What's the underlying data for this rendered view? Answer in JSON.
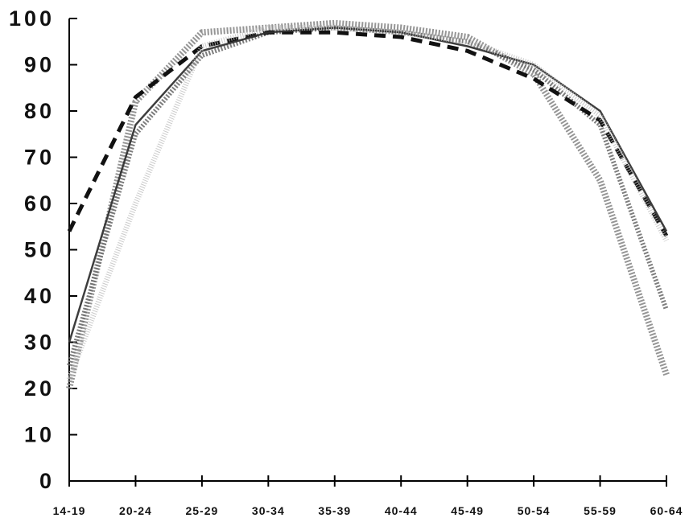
{
  "chart_data": {
    "type": "line",
    "title": "",
    "xlabel": "",
    "ylabel": "",
    "categories": [
      "14-19",
      "20-24",
      "25-29",
      "30-34",
      "35-39",
      "40-44",
      "45-49",
      "50-54",
      "55-59",
      "60-64"
    ],
    "ylim": [
      0,
      100
    ],
    "yticks": [
      "0",
      "10",
      "20",
      "30",
      "40",
      "50",
      "60",
      "70",
      "80",
      "90",
      "100"
    ],
    "grid": false,
    "legend": "none",
    "series": [
      {
        "values": [
          20,
          82,
          97,
          98,
          99,
          98,
          96,
          88,
          65,
          23
        ],
        "color": "#8a8a8a",
        "style": "thick-hatched"
      },
      {
        "values": [
          25,
          75,
          92,
          97,
          98,
          97,
          95,
          89,
          77,
          37
        ],
        "color": "#6f6f6f",
        "style": "hatched"
      },
      {
        "values": [
          54,
          83,
          94,
          97,
          97,
          96,
          93,
          87,
          78,
          53
        ],
        "color": "#111111",
        "style": "dashed"
      },
      {
        "values": [
          30,
          77,
          93,
          97,
          98,
          97,
          94,
          90,
          80,
          54
        ],
        "color": "#333333",
        "style": "solid"
      },
      {
        "values": [
          22,
          60,
          94,
          98,
          98,
          97,
          95,
          90,
          79,
          52
        ],
        "color": "#bdbdbd",
        "style": "dotted-light"
      }
    ]
  }
}
